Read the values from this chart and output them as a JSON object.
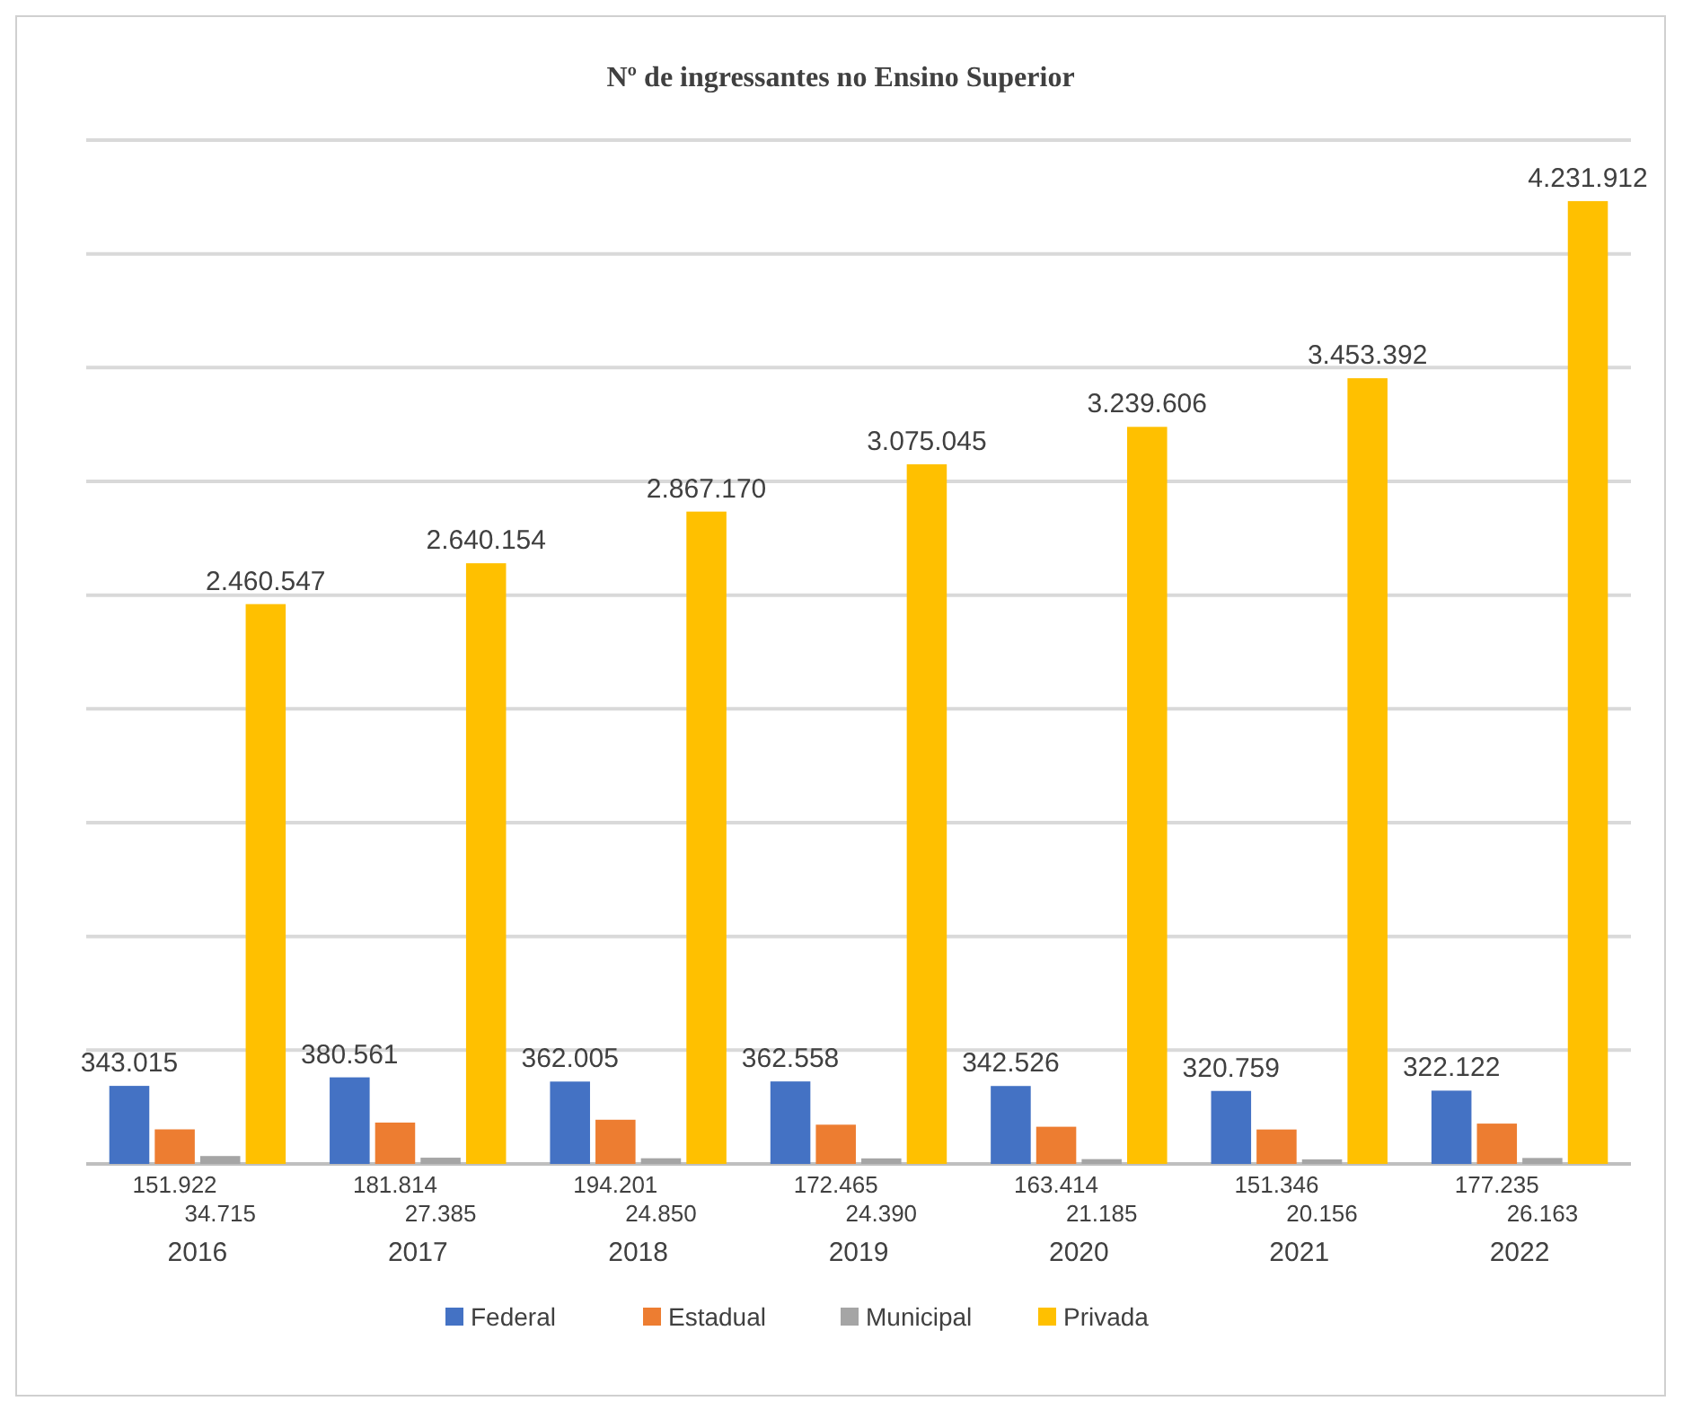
{
  "chart_data": {
    "type": "bar",
    "title": "Nº de ingressantes no Ensino Superior",
    "categories": [
      "2016",
      "2017",
      "2018",
      "2019",
      "2020",
      "2021",
      "2022"
    ],
    "series": [
      {
        "name": "Federal",
        "color": "#4472c4",
        "values": [
          343015,
          380561,
          362005,
          362558,
          342526,
          320759,
          322122
        ],
        "value_labels": [
          "343.015",
          "380.561",
          "362.005",
          "362.558",
          "342.526",
          "320.759",
          "322.122"
        ]
      },
      {
        "name": "Estadual",
        "color": "#ed7d31",
        "values": [
          151922,
          181814,
          194201,
          172465,
          163414,
          151346,
          177235
        ],
        "value_labels": [
          "151.922",
          "181.814",
          "194.201",
          "172.465",
          "163.414",
          "151.346",
          "177.235"
        ]
      },
      {
        "name": "Municipal",
        "color": "#a5a5a5",
        "values": [
          34715,
          27385,
          24850,
          24390,
          21185,
          20156,
          26163
        ],
        "value_labels": [
          "34.715",
          "27.385",
          "24.850",
          "24.390",
          "21.185",
          "20.156",
          "26.163"
        ]
      },
      {
        "name": "Privada",
        "color": "#ffc000",
        "values": [
          2460547,
          2640154,
          2867170,
          3075045,
          3239606,
          3453392,
          4231912
        ],
        "value_labels": [
          "2.460.547",
          "2.640.154",
          "2.867.170",
          "3.075.045",
          "3.239.606",
          "3.453.392",
          "4.231.912"
        ]
      }
    ],
    "ylim": [
      0,
      4500000
    ],
    "yticks": [
      {
        "value": 0,
        "label": null
      },
      {
        "value": 500000,
        "label": null
      },
      {
        "value": 1000000,
        "label": null
      },
      {
        "value": 1500000,
        "label": null
      },
      {
        "value": 2000000,
        "label": null
      },
      {
        "value": 2500000,
        "label": null
      },
      {
        "value": 3000000,
        "label": null
      },
      {
        "value": 3500000,
        "label": null
      },
      {
        "value": 4000000,
        "label": null
      },
      {
        "value": 4500000,
        "label": null
      }
    ],
    "grid": "y",
    "legend": "bottom"
  }
}
